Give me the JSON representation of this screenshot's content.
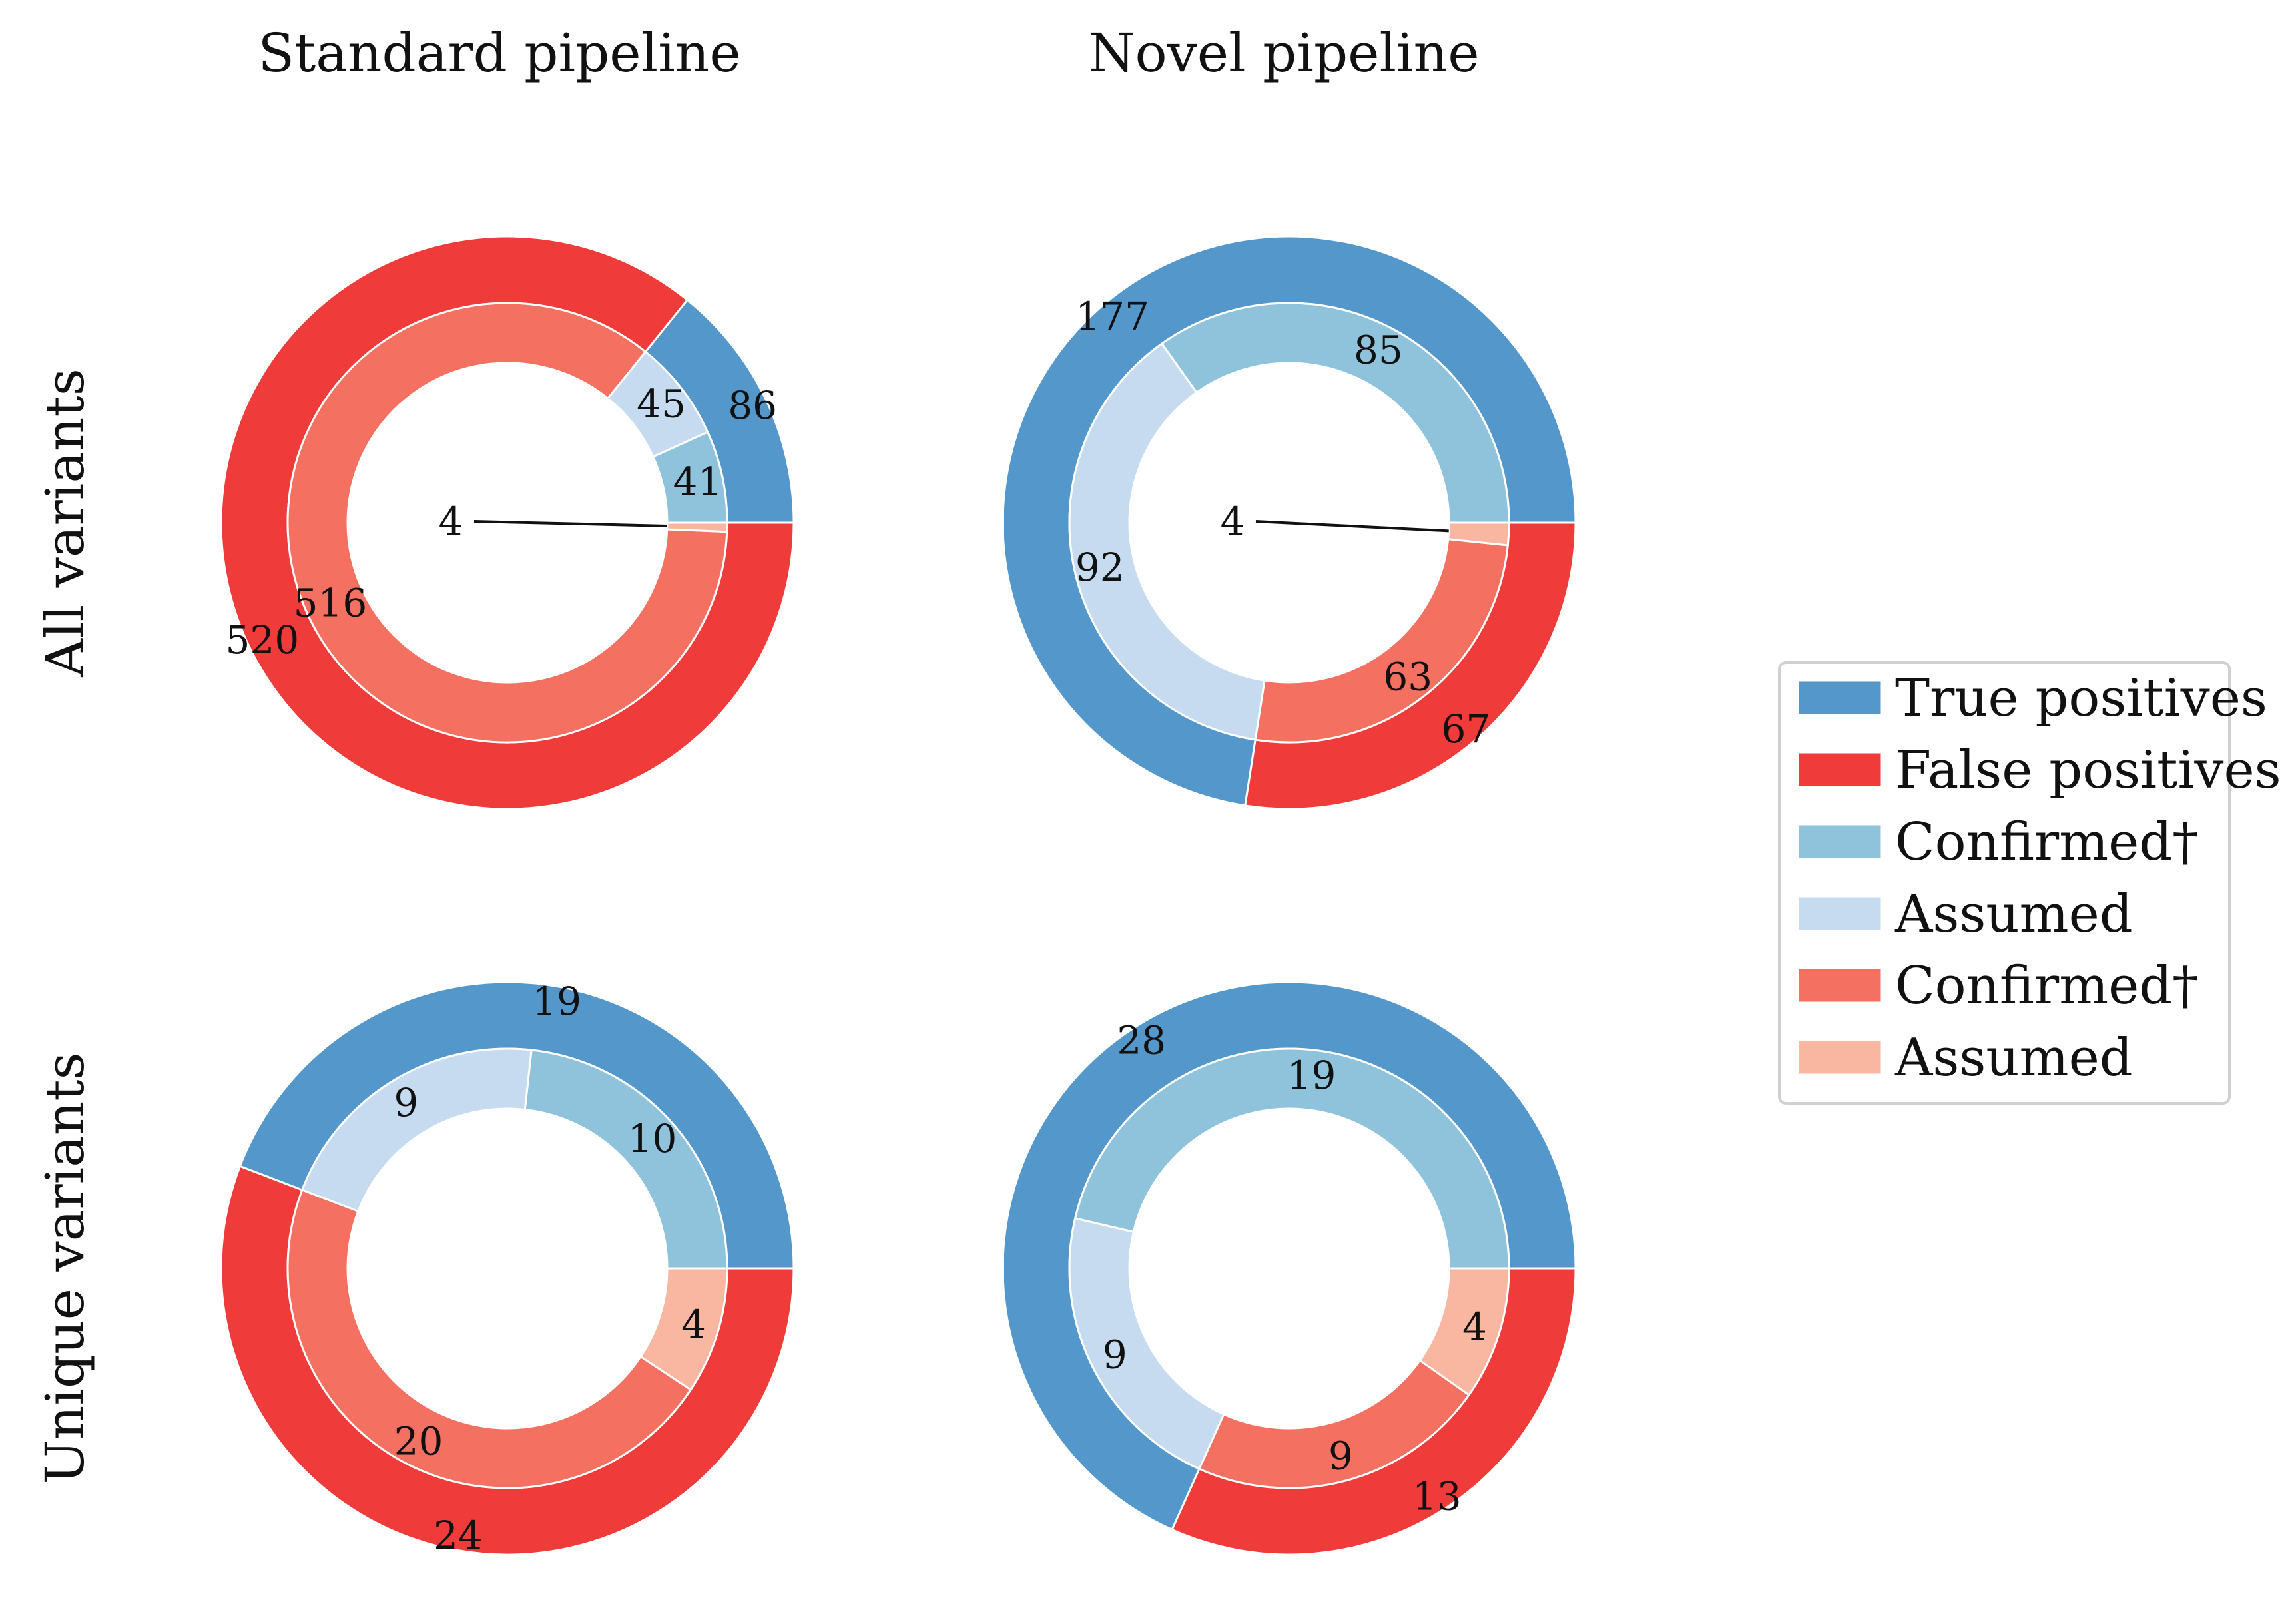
{
  "legend": [
    {
      "label": "True positives",
      "color": "#5497cb"
    },
    {
      "label": "False positives",
      "color": "#ef3b39"
    },
    {
      "label": "Confirmed†",
      "color": "#8fc3dc"
    },
    {
      "label": "Assumed",
      "color": "#c6dbef"
    },
    {
      "label": "Confirmed†",
      "color": "#f47060"
    },
    {
      "label": "Assumed",
      "color": "#f9b6a0"
    }
  ],
  "chart_data": [
    {
      "type": "pie",
      "col_title": "Standard pipeline",
      "row_title": "All variants",
      "outer": [
        {
          "label": "True positives",
          "value": 86,
          "color": "#5497cb"
        },
        {
          "label": "False positives",
          "value": 520,
          "color": "#ef3b39"
        }
      ],
      "inner": [
        {
          "label": "Confirmed†",
          "value": 41,
          "color": "#8fc3dc"
        },
        {
          "label": "Assumed",
          "value": 45,
          "color": "#c6dbef"
        },
        {
          "label": "Confirmed†",
          "value": 516,
          "color": "#f47060"
        },
        {
          "label": "Assumed",
          "value": 4,
          "color": "#f9b6a0"
        }
      ]
    },
    {
      "type": "pie",
      "col_title": "Novel pipeline",
      "row_title": "",
      "outer": [
        {
          "label": "True positives",
          "value": 177,
          "color": "#5497cb"
        },
        {
          "label": "False positives",
          "value": 67,
          "color": "#ef3b39"
        }
      ],
      "inner": [
        {
          "label": "Confirmed†",
          "value": 85,
          "color": "#8fc3dc"
        },
        {
          "label": "Assumed",
          "value": 92,
          "color": "#c6dbef"
        },
        {
          "label": "Confirmed†",
          "value": 63,
          "color": "#f47060"
        },
        {
          "label": "Assumed",
          "value": 4,
          "color": "#f9b6a0"
        }
      ]
    },
    {
      "type": "pie",
      "col_title": "",
      "row_title": "Unique variants",
      "outer": [
        {
          "label": "True positives",
          "value": 19,
          "color": "#5497cb"
        },
        {
          "label": "False positives",
          "value": 24,
          "color": "#ef3b39"
        }
      ],
      "inner": [
        {
          "label": "Confirmed†",
          "value": 10,
          "color": "#8fc3dc"
        },
        {
          "label": "Assumed",
          "value": 9,
          "color": "#c6dbef"
        },
        {
          "label": "Confirmed†",
          "value": 20,
          "color": "#f47060"
        },
        {
          "label": "Assumed",
          "value": 4,
          "color": "#f9b6a0"
        }
      ]
    },
    {
      "type": "pie",
      "col_title": "",
      "row_title": "",
      "outer": [
        {
          "label": "True positives",
          "value": 28,
          "color": "#5497cb"
        },
        {
          "label": "False positives",
          "value": 13,
          "color": "#ef3b39"
        }
      ],
      "inner": [
        {
          "label": "Confirmed†",
          "value": 19,
          "color": "#8fc3dc"
        },
        {
          "label": "Assumed",
          "value": 9,
          "color": "#c6dbef"
        },
        {
          "label": "Confirmed†",
          "value": 9,
          "color": "#f47060"
        },
        {
          "label": "Assumed",
          "value": 4,
          "color": "#f9b6a0"
        }
      ]
    }
  ]
}
